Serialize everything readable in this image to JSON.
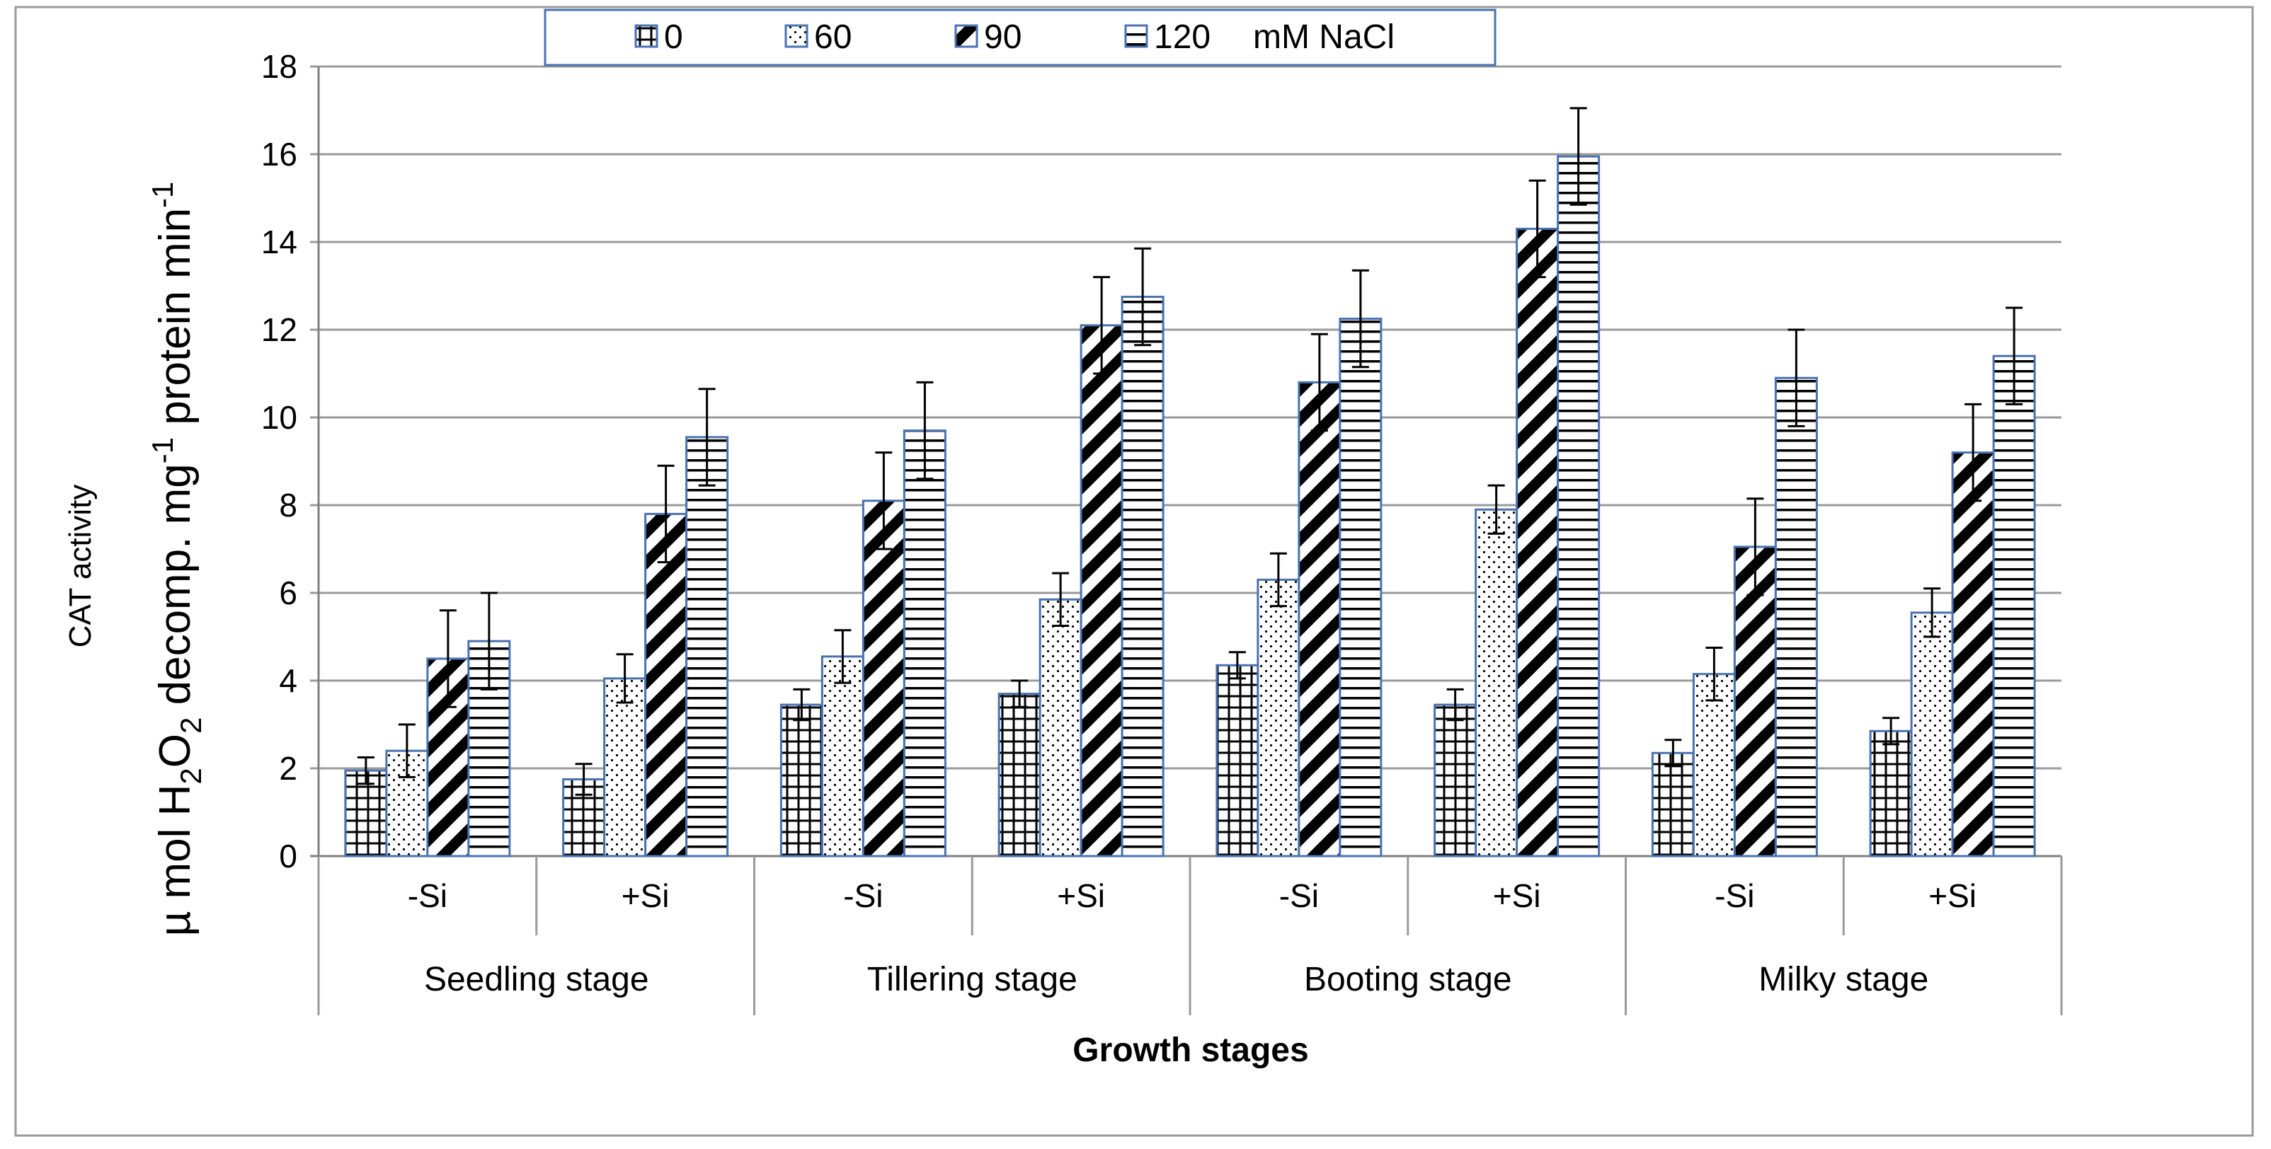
{
  "chart_data": {
    "type": "bar",
    "ylabel_small": "CAT activity",
    "ylabel": {
      "part1": "µ mol H",
      "sub1": "2",
      "part2": "O",
      "sub2": "2",
      "part3": " decomp. mg",
      "sup1": "-1",
      "part4": " protein min",
      "sup2": "-1"
    },
    "xlabel": "Growth stages",
    "ylim": [
      0,
      18
    ],
    "yticks": [
      0,
      2,
      4,
      6,
      8,
      10,
      12,
      14,
      16,
      18
    ],
    "legend_suffix": "mM NaCl",
    "groups": [
      "Seedling stage",
      "Tillering stage",
      "Booting stage",
      "Milky stage"
    ],
    "subgroups": [
      "-Si",
      "+Si"
    ],
    "categories": [
      {
        "group": "Seedling stage",
        "sub": "-Si"
      },
      {
        "group": "Seedling stage",
        "sub": "+Si"
      },
      {
        "group": "Tillering stage",
        "sub": "-Si"
      },
      {
        "group": "Tillering stage",
        "sub": "+Si"
      },
      {
        "group": "Booting stage",
        "sub": "-Si"
      },
      {
        "group": "Booting stage",
        "sub": "+Si"
      },
      {
        "group": "Milky stage",
        "sub": "-Si"
      },
      {
        "group": "Milky stage",
        "sub": "+Si"
      }
    ],
    "series": [
      {
        "name": "0",
        "pattern": "grid",
        "values": [
          1.95,
          1.75,
          3.45,
          3.7,
          4.35,
          3.45,
          2.35,
          2.85
        ],
        "errors": [
          0.3,
          0.35,
          0.35,
          0.3,
          0.3,
          0.35,
          0.3,
          0.3
        ]
      },
      {
        "name": "60",
        "pattern": "dots",
        "values": [
          2.4,
          4.05,
          4.55,
          5.85,
          6.3,
          7.9,
          4.15,
          5.55
        ],
        "errors": [
          0.6,
          0.55,
          0.6,
          0.6,
          0.6,
          0.55,
          0.6,
          0.55
        ]
      },
      {
        "name": "90",
        "pattern": "diag",
        "values": [
          4.5,
          7.8,
          8.1,
          12.1,
          10.8,
          14.3,
          7.05,
          9.2
        ],
        "errors": [
          1.1,
          1.1,
          1.1,
          1.1,
          1.1,
          1.1,
          1.1,
          1.1
        ]
      },
      {
        "name": "120",
        "pattern": "hlines",
        "values": [
          4.9,
          9.55,
          9.7,
          12.75,
          12.25,
          15.95,
          10.9,
          11.4
        ],
        "errors": [
          1.1,
          1.1,
          1.1,
          1.1,
          1.1,
          1.1,
          1.1,
          1.1
        ]
      }
    ]
  }
}
